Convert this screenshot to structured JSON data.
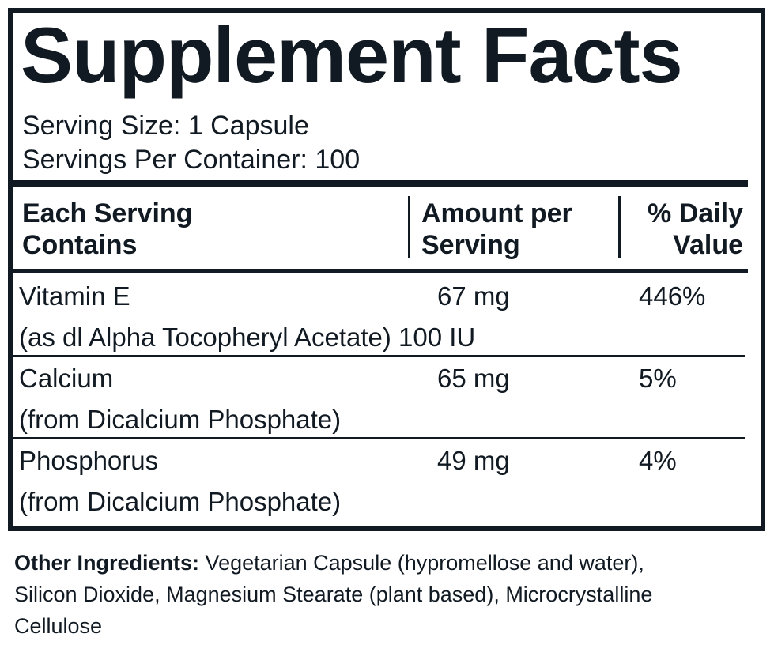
{
  "title": "Supplement Facts",
  "serving_size": "Serving Size: 1 Capsule",
  "servings_per_container": "Servings Per Container: 100",
  "table": {
    "header": [
      "Each Serving\nContains",
      "Amount per\nServing",
      "% Daily\nValue"
    ],
    "rows": [
      {
        "name": "Vitamin E",
        "source": "(as dl Alpha Tocopheryl Acetate) 100 IU",
        "amount": "67 mg",
        "daily_value": "446%"
      },
      {
        "name": "Calcium",
        "source": "(from Dicalcium Phosphate)",
        "amount": "65 mg",
        "daily_value": "5%"
      },
      {
        "name": "Phosphorus",
        "source": "(from Dicalcium Phosphate)",
        "amount": "49 mg",
        "daily_value": "4%"
      }
    ]
  },
  "other_ingredients": {
    "label": "Other Ingredients:",
    "text": "Vegetarian Capsule (hypromellose and water), Silicon Dioxide, Magnesium Stearate (plant based), Microcrystalline Cellulose"
  }
}
